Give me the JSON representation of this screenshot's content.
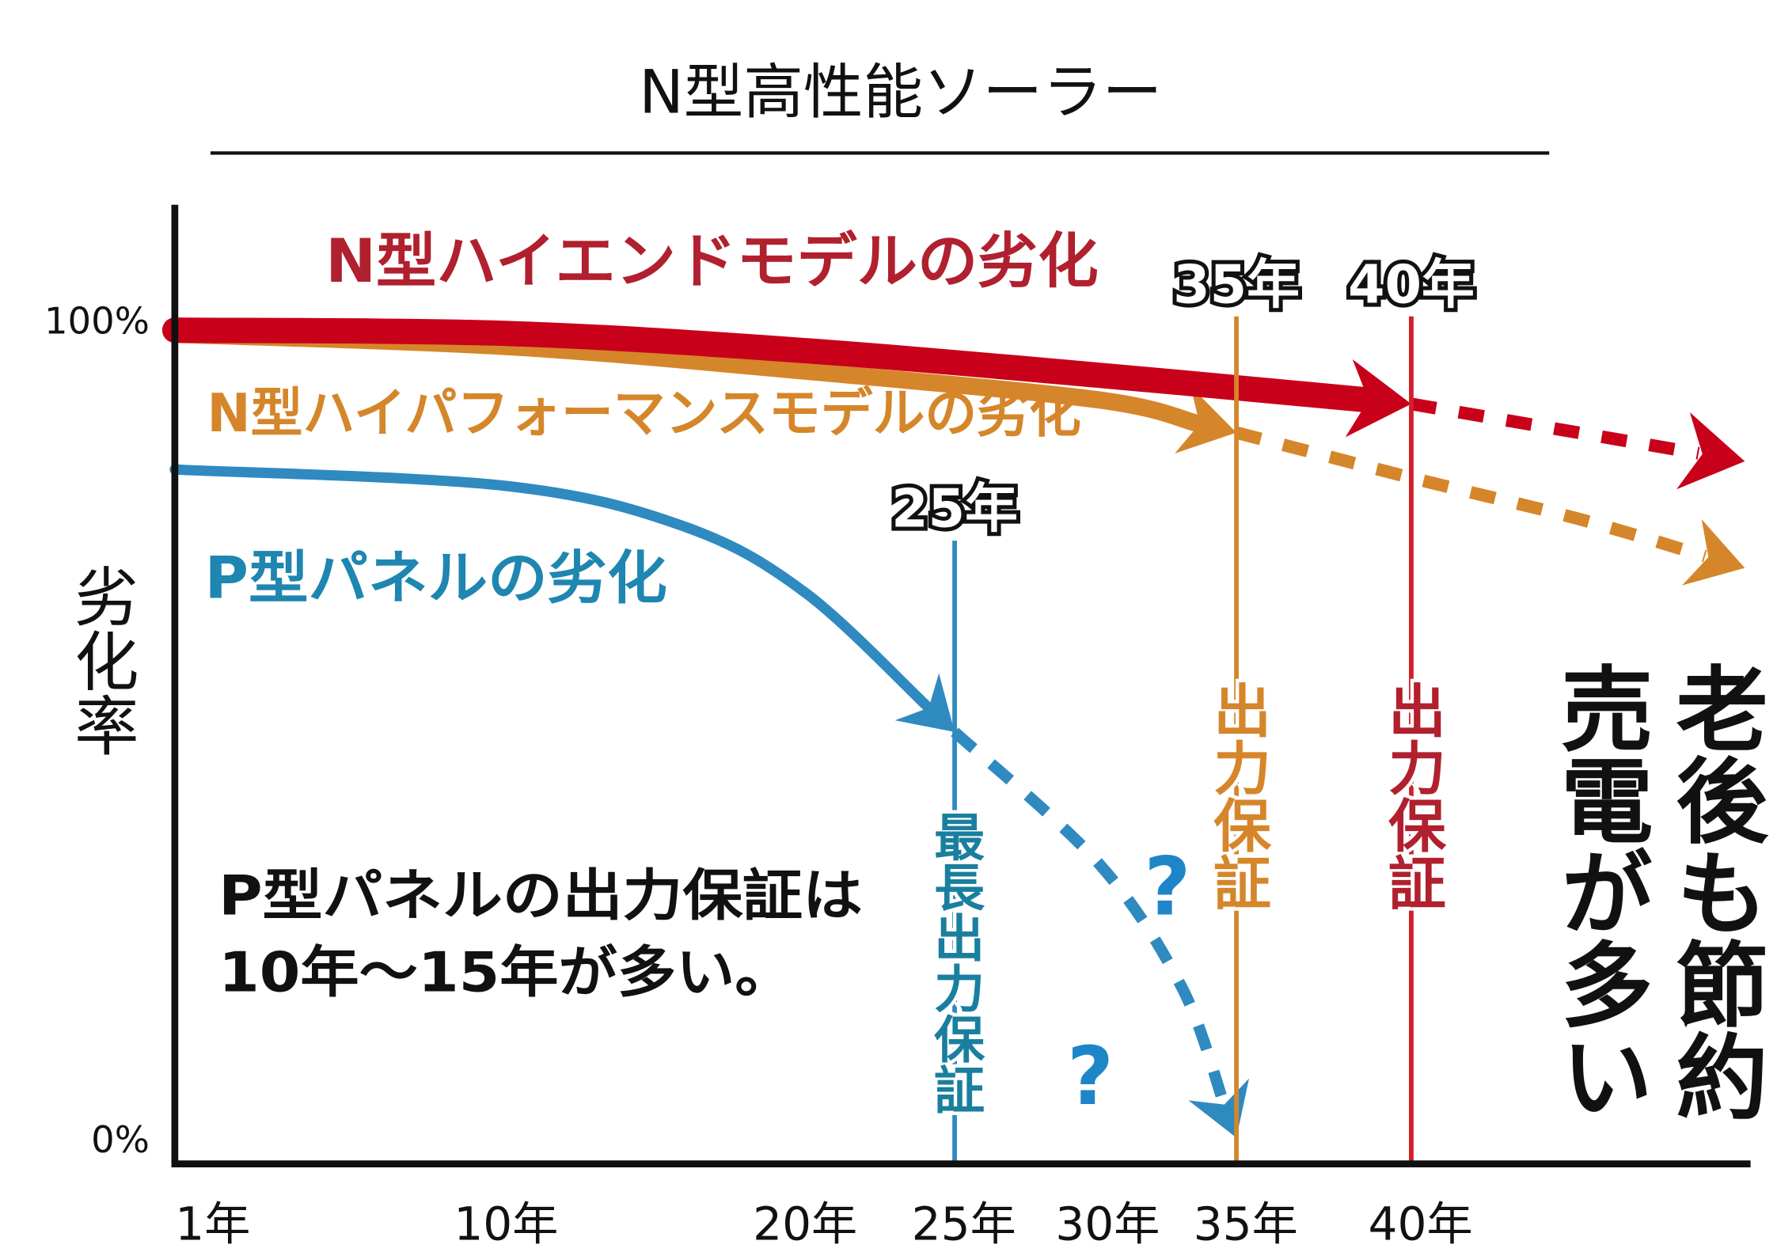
{
  "title": "N型高性能ソーラー",
  "chart_data": {
    "type": "line",
    "title": "N型高性能ソーラー",
    "ylabel": "劣化率",
    "xlabel": "",
    "y_ticks": [
      "100%",
      "0%"
    ],
    "ylim": [
      0,
      100
    ],
    "x_ticks": [
      {
        "value": 1,
        "label": "1年"
      },
      {
        "value": 10,
        "label": "10年"
      },
      {
        "value": 20,
        "label": "20年"
      },
      {
        "value": 25,
        "label": "25年"
      },
      {
        "value": 30,
        "label": "30年"
      },
      {
        "value": 35,
        "label": "35年"
      },
      {
        "value": 40,
        "label": "40年"
      }
    ],
    "grid": false,
    "series": [
      {
        "name": "N型ハイエンドモデルの劣化",
        "color": "#c8001a",
        "label_color": "#b0202e",
        "solid": [
          [
            1,
            100
          ],
          [
            10,
            99.6
          ],
          [
            20,
            97.5
          ],
          [
            30,
            94.5
          ],
          [
            40,
            91
          ]
        ],
        "dashed": [
          [
            40,
            91
          ],
          [
            45,
            87.5
          ],
          [
            50,
            84
          ]
        ]
      },
      {
        "name": "N型ハイパフォーマンスモデルの劣化",
        "color": "#d5862a",
        "label_color": "#d5862a",
        "solid": [
          [
            1,
            99.5
          ],
          [
            10,
            98
          ],
          [
            20,
            95
          ],
          [
            30,
            91.5
          ],
          [
            35,
            87.5
          ]
        ],
        "dashed": [
          [
            35,
            87.5
          ],
          [
            40,
            82
          ],
          [
            45,
            77
          ],
          [
            50,
            71
          ]
        ]
      },
      {
        "name": "P型パネルの劣化",
        "color": "#2f8ac0",
        "label_color": "#1e86b0",
        "solid": [
          [
            1,
            83
          ],
          [
            10,
            81
          ],
          [
            16,
            76
          ],
          [
            20,
            68
          ],
          [
            25,
            51
          ]
        ],
        "dashed": [
          [
            25,
            51
          ],
          [
            30,
            35
          ],
          [
            33,
            20
          ],
          [
            35,
            1.5
          ]
        ]
      }
    ],
    "markers": [
      {
        "x": 25,
        "label": "25年",
        "color": "#2f8ac0",
        "note": "最長出力保証",
        "note_color": "#1a7f9e"
      },
      {
        "x": 35,
        "label": "35年",
        "color": "#d5862a",
        "note": "出力保証",
        "note_color": "#d5862a"
      },
      {
        "x": 40,
        "label": "40年",
        "color": "#d0202a",
        "note": "出力保証",
        "note_color": "#b0202e"
      }
    ],
    "question_marks": [
      "?",
      "?"
    ],
    "annotation_lines": [
      "P型パネルの出力保証は",
      "10年〜15年が多い。"
    ],
    "side_text": [
      "老後も節約",
      "売電が多い"
    ]
  }
}
